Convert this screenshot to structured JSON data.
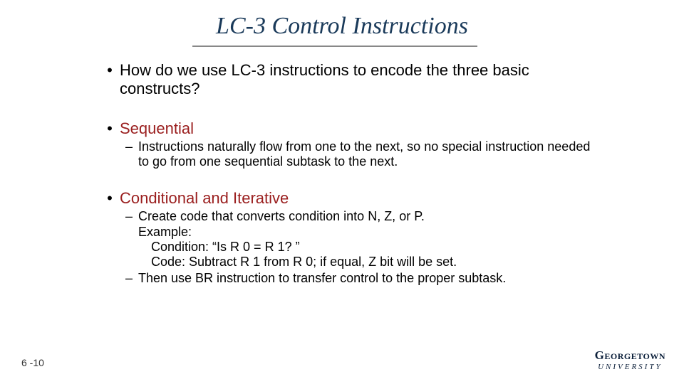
{
  "title": "LC-3 Control Instructions",
  "bullets": {
    "intro": "How do we use LC-3 instructions to encode the three basic constructs?",
    "seq_head": "Sequential",
    "seq_sub": "Instructions naturally flow from one to the next, so no special instruction needed to go from one sequential subtask to the next.",
    "cond_head": "Conditional and Iterative",
    "cond_sub1_l1": "Create code that converts condition into N, Z, or P.",
    "cond_sub1_l2": "Example:",
    "cond_sub1_l3": " Condition: “Is R 0 = R 1? ”",
    "cond_sub1_l4": " Code: Subtract R 1 from R 0; if equal, Z bit will be set.",
    "cond_sub2": "Then use BR instruction to transfer control to the proper subtask."
  },
  "pageno": "6 -10",
  "logo": {
    "main": "Georgetown",
    "sub": "UNIVERSITY"
  },
  "colors": {
    "title": "#1a3a5a",
    "accent_red": "#9a1e1e",
    "text": "#000000",
    "underline": "#888888",
    "logo": "#0b1f3a",
    "background": "#ffffff"
  }
}
